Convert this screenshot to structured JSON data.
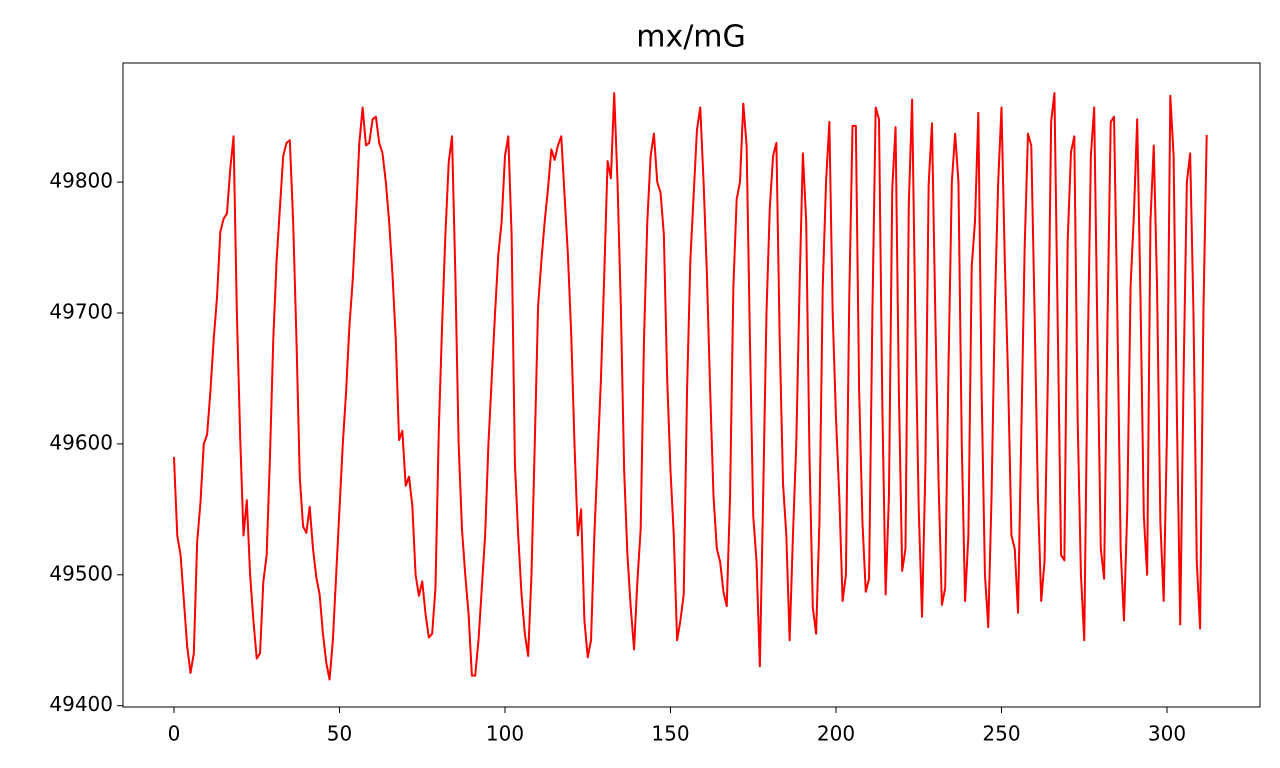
{
  "chart_data": {
    "type": "line",
    "title": "mx/mG",
    "color": "#ff0000",
    "x": [
      0,
      1,
      2,
      3,
      4,
      5,
      6,
      7,
      8,
      9,
      10,
      11,
      12,
      13,
      14,
      15,
      16,
      17,
      18,
      19,
      20,
      21,
      22,
      23,
      24,
      25,
      26,
      27,
      28,
      29,
      30,
      31,
      32,
      33,
      34,
      35,
      36,
      37,
      38,
      39,
      40,
      41,
      42,
      43,
      44,
      45,
      46,
      47,
      48,
      49,
      50,
      51,
      52,
      53,
      54,
      55,
      56,
      57,
      58,
      59,
      60,
      61,
      62,
      63,
      64,
      65,
      66,
      67,
      68,
      69,
      70,
      71,
      72,
      73,
      74,
      75,
      76,
      77,
      78,
      79,
      80,
      81,
      82,
      83,
      84,
      85,
      86,
      87,
      88,
      89,
      90,
      91,
      92,
      93,
      94,
      95,
      96,
      97,
      98,
      99,
      100,
      101,
      102,
      103,
      104,
      105,
      106,
      107,
      108,
      109,
      110,
      111,
      112,
      113,
      114,
      115,
      116,
      117,
      118,
      119,
      120,
      121,
      122,
      123,
      124,
      125,
      126,
      127,
      128,
      129,
      130,
      131,
      132,
      133,
      134,
      135,
      136,
      137,
      138,
      139,
      140,
      141,
      142,
      143,
      144,
      145,
      146,
      147,
      148,
      149,
      150,
      151,
      152,
      153,
      154,
      155,
      156,
      157,
      158,
      159,
      160,
      161,
      162,
      163,
      164,
      165,
      166,
      167,
      168,
      169,
      170,
      171,
      172,
      173,
      174,
      175,
      176,
      177,
      178,
      179,
      180,
      181,
      182,
      183,
      184,
      185,
      186,
      187,
      188,
      189,
      190,
      191,
      192,
      193,
      194,
      195,
      196,
      197,
      198,
      199,
      200,
      201,
      202,
      203,
      204,
      205,
      206,
      207,
      208,
      209,
      210,
      211,
      212,
      213,
      214,
      215,
      216,
      217,
      218,
      219,
      220,
      221,
      222,
      223,
      224,
      225,
      226,
      227,
      228,
      229,
      230,
      231,
      232,
      233,
      234,
      235,
      236,
      237,
      238,
      239,
      240,
      241,
      242,
      243,
      244,
      245,
      246,
      247,
      248,
      249,
      250,
      251,
      252,
      253,
      254,
      255,
      256,
      257,
      258,
      259,
      260,
      261,
      262,
      263,
      264,
      265,
      266,
      267,
      268,
      269,
      270,
      271,
      272,
      273,
      274,
      275,
      276,
      277,
      278,
      279,
      280,
      281,
      282,
      283,
      284,
      285,
      286,
      287,
      288,
      289,
      290,
      291,
      292,
      293,
      294,
      295,
      296,
      297,
      298,
      299,
      300,
      301,
      302,
      303,
      304,
      305,
      306,
      307,
      308,
      309,
      310,
      311,
      312
    ],
    "values": [
      49590,
      49530,
      49515,
      49480,
      49445,
      49425,
      49440,
      49525,
      49555,
      49600,
      49607,
      49640,
      49680,
      49712,
      49762,
      49772,
      49776,
      49810,
      49835,
      49700,
      49605,
      49530,
      49557,
      49500,
      49465,
      49436,
      49440,
      49495,
      49515,
      49590,
      49680,
      49740,
      49780,
      49820,
      49830,
      49832,
      49770,
      49680,
      49575,
      49537,
      49532,
      49552,
      49520,
      49498,
      49485,
      49455,
      49433,
      49420,
      49450,
      49500,
      49550,
      49600,
      49640,
      49690,
      49725,
      49775,
      49830,
      49857,
      49828,
      49830,
      49848,
      49850,
      49830,
      49822,
      49800,
      49770,
      49730,
      49680,
      49603,
      49610,
      49568,
      49575,
      49553,
      49500,
      49484,
      49495,
      49470,
      49452,
      49455,
      49490,
      49610,
      49690,
      49760,
      49815,
      49835,
      49730,
      49600,
      49535,
      49500,
      49470,
      49423,
      49423,
      49450,
      49490,
      49530,
      49600,
      49650,
      49700,
      49745,
      49770,
      49820,
      49835,
      49760,
      49585,
      49530,
      49485,
      49455,
      49438,
      49500,
      49600,
      49705,
      49740,
      49770,
      49795,
      49825,
      49817,
      49828,
      49835,
      49790,
      49745,
      49685,
      49600,
      49530,
      49550,
      49465,
      49437,
      49450,
      49530,
      49590,
      49650,
      49730,
      49816,
      49803,
      49868,
      49800,
      49705,
      49580,
      49515,
      49475,
      49443,
      49495,
      49535,
      49680,
      49770,
      49820,
      49837,
      49800,
      49792,
      49760,
      49650,
      49580,
      49530,
      49450,
      49465,
      49485,
      49640,
      49740,
      49790,
      49840,
      49857,
      49800,
      49730,
      49640,
      49560,
      49520,
      49510,
      49487,
      49476,
      49560,
      49720,
      49787,
      49800,
      49860,
      49828,
      49680,
      49545,
      49510,
      49430,
      49560,
      49700,
      49780,
      49820,
      49830,
      49680,
      49570,
      49530,
      49450,
      49530,
      49600,
      49720,
      49822,
      49770,
      49590,
      49475,
      49455,
      49540,
      49720,
      49800,
      49846,
      49700,
      49620,
      49560,
      49480,
      49500,
      49710,
      49843,
      49843,
      49640,
      49540,
      49487,
      49497,
      49700,
      49857,
      49848,
      49630,
      49485,
      49560,
      49795,
      49842,
      49640,
      49503,
      49520,
      49783,
      49863,
      49690,
      49550,
      49468,
      49580,
      49798,
      49845,
      49700,
      49570,
      49477,
      49490,
      49660,
      49800,
      49837,
      49800,
      49600,
      49480,
      49530,
      49735,
      49770,
      49853,
      49640,
      49500,
      49460,
      49560,
      49705,
      49800,
      49857,
      49740,
      49650,
      49530,
      49520,
      49471,
      49610,
      49750,
      49837,
      49828,
      49700,
      49560,
      49480,
      49510,
      49650,
      49846,
      49868,
      49690,
      49515,
      49511,
      49755,
      49823,
      49835,
      49620,
      49500,
      49450,
      49660,
      49820,
      49857,
      49680,
      49520,
      49497,
      49690,
      49846,
      49850,
      49700,
      49520,
      49465,
      49550,
      49720,
      49775,
      49848,
      49710,
      49545,
      49500,
      49770,
      49828,
      49720,
      49540,
      49480,
      49610,
      49866,
      49820,
      49620,
      49462,
      49650,
      49800,
      49822,
      49700,
      49510,
      49459,
      49700,
      49836
    ],
    "xlim": [
      -15.4,
      328.1
    ],
    "ylim": [
      49399,
      49891
    ],
    "xticks": [
      0,
      50,
      100,
      150,
      200,
      250,
      300
    ],
    "yticks": [
      49400,
      49500,
      49600,
      49700,
      49800
    ]
  }
}
